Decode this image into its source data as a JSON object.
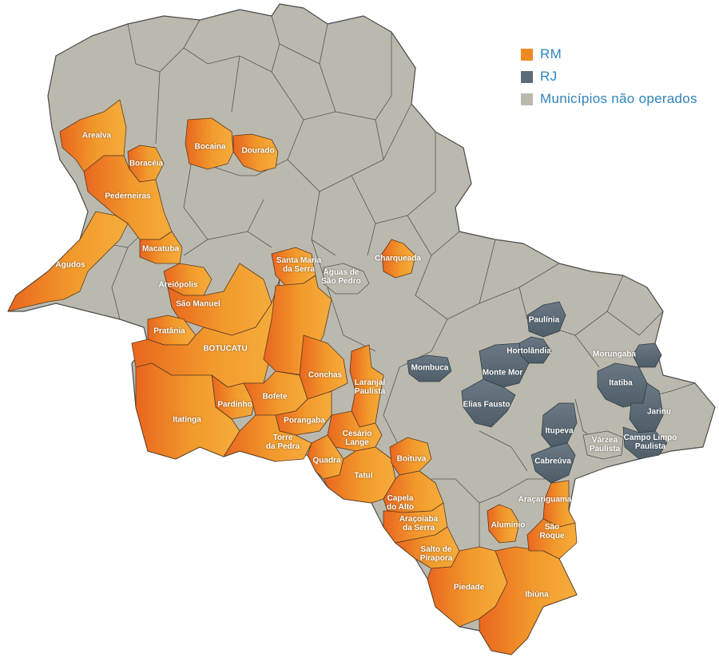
{
  "colors": {
    "rm": "#ef8a22",
    "rm_light": "#f5a93a",
    "rj": "#5c6b78",
    "not_operated": "#bbb9ae",
    "border": "#4a4a4a",
    "legend_text": "#2f83bb"
  },
  "legend": [
    {
      "label": "RM",
      "category": "rm"
    },
    {
      "label": "RJ",
      "category": "rj"
    },
    {
      "label": "Municípios não operados",
      "category": "not_operated"
    }
  ],
  "municipalities": [
    {
      "name": "Arealva",
      "category": "rm"
    },
    {
      "name": "Boracéia",
      "category": "rm"
    },
    {
      "name": "Pederneiras",
      "category": "rm"
    },
    {
      "name": "Bocaina",
      "category": "rm"
    },
    {
      "name": "Dourado",
      "category": "rm"
    },
    {
      "name": "Agudos",
      "category": "rm"
    },
    {
      "name": "Macatuba",
      "category": "rm"
    },
    {
      "name": "Areiópolis",
      "category": "rm"
    },
    {
      "name": "São Manuel",
      "category": "rm"
    },
    {
      "name": "Pratânia",
      "category": "rm"
    },
    {
      "name": "BOTUCATU",
      "category": "rm"
    },
    {
      "name": "Pardinho",
      "category": "rm"
    },
    {
      "name": "Bofete",
      "category": "rm"
    },
    {
      "name": "Itatinga",
      "category": "rm"
    },
    {
      "name": "Santa Maria\nda Serra",
      "category": "rm"
    },
    {
      "name": "Águas de\nSão Pedro",
      "category": "not_operated"
    },
    {
      "name": "Charqueada",
      "category": "rm"
    },
    {
      "name": "Conchas",
      "category": "rm"
    },
    {
      "name": "Laranjal\nPaulista",
      "category": "rm"
    },
    {
      "name": "Porangaba",
      "category": "rm"
    },
    {
      "name": "Torre\nda Pedra",
      "category": "rm"
    },
    {
      "name": "Cesário\nLange",
      "category": "rm"
    },
    {
      "name": "Quadra",
      "category": "rm"
    },
    {
      "name": "Tatuí",
      "category": "rm"
    },
    {
      "name": "Boituva",
      "category": "rm"
    },
    {
      "name": "Capela\ndo Alto",
      "category": "rm"
    },
    {
      "name": "Araçoiaba\nda Serra",
      "category": "rm"
    },
    {
      "name": "Salto de\nPirapora",
      "category": "rm"
    },
    {
      "name": "Piedade",
      "category": "rm"
    },
    {
      "name": "Ibiúna",
      "category": "rm"
    },
    {
      "name": "Alumínio",
      "category": "rm"
    },
    {
      "name": "Araçariguama",
      "category": "rm"
    },
    {
      "name": "São\nRoque",
      "category": "rm"
    },
    {
      "name": "Paulínia",
      "category": "rj"
    },
    {
      "name": "Hortolândia",
      "category": "rj"
    },
    {
      "name": "Mombuca",
      "category": "rj"
    },
    {
      "name": "Monte Mor",
      "category": "rj"
    },
    {
      "name": "Elias Fausto",
      "category": "rj"
    },
    {
      "name": "Itupeva",
      "category": "rj"
    },
    {
      "name": "Cabreúva",
      "category": "rj"
    },
    {
      "name": "Morungaba",
      "category": "rj"
    },
    {
      "name": "Itatiba",
      "category": "rj"
    },
    {
      "name": "Jarinu",
      "category": "rj"
    },
    {
      "name": "Várzea\nPaulista",
      "category": "not_operated"
    },
    {
      "name": "Campo Limpo\nPaulista",
      "category": "rj"
    }
  ]
}
